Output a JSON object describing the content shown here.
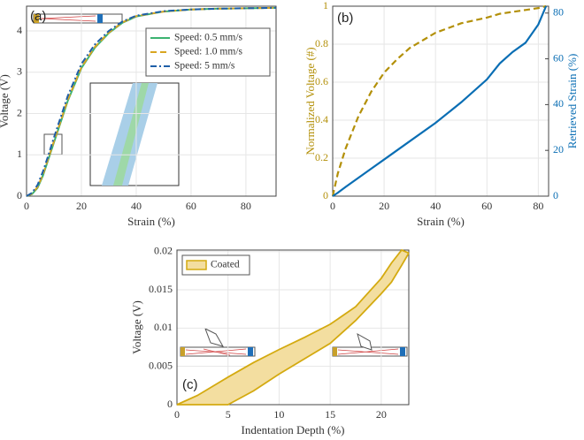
{
  "chart_data": [
    {
      "type": "line",
      "panel_label": "(a)",
      "xlabel": "Strain (%)",
      "ylabel": "Voltage (V)",
      "xlim": [
        0,
        91
      ],
      "ylim": [
        0,
        4.6
      ],
      "xticks": [
        0,
        20,
        40,
        60,
        80
      ],
      "yticks": [
        0,
        1,
        2,
        3,
        4
      ],
      "grid": true,
      "x": [
        0,
        2,
        4,
        6,
        8,
        10,
        12,
        15,
        20,
        25,
        30,
        35,
        40,
        50,
        60,
        70,
        80,
        91
      ],
      "series": [
        {
          "name": "Speed: 0.5 mm/s",
          "color": "#3cb371",
          "dash": "solid",
          "values": [
            0,
            0.05,
            0.2,
            0.5,
            0.9,
            1.3,
            1.7,
            2.3,
            3.1,
            3.6,
            3.95,
            4.2,
            4.35,
            4.47,
            4.52,
            4.54,
            4.55,
            4.56
          ]
        },
        {
          "name": "Speed: 1.0 mm/s",
          "color": "#d9a520",
          "dash": "dashed",
          "values": [
            0,
            0.06,
            0.22,
            0.53,
            0.93,
            1.33,
            1.73,
            2.33,
            3.12,
            3.62,
            3.96,
            4.21,
            4.36,
            4.47,
            4.52,
            4.54,
            4.55,
            4.56
          ]
        },
        {
          "name": "Speed: 5 mm/s",
          "color": "#1f5fa8",
          "dash": "dashdot",
          "values": [
            0,
            0.08,
            0.27,
            0.6,
            1.0,
            1.42,
            1.82,
            2.42,
            3.2,
            3.68,
            4.0,
            4.23,
            4.37,
            4.48,
            4.52,
            4.54,
            4.55,
            4.56
          ]
        }
      ]
    },
    {
      "type": "dual_line",
      "panel_label": "(b)",
      "xlabel": "Strain (%)",
      "ylabel": "Normalized Voltage (#)",
      "y2label": "Retrieved Strain (%)",
      "xlim": [
        0,
        84
      ],
      "ylim": [
        0,
        1
      ],
      "y2lim": [
        0,
        83
      ],
      "xticks": [
        0,
        20,
        40,
        60,
        80
      ],
      "yticks": [
        0,
        0.2,
        0.4,
        0.6,
        0.8,
        1
      ],
      "y2ticks": [
        0,
        20,
        40,
        60,
        80
      ],
      "grid": true,
      "x": [
        0,
        2,
        5,
        10,
        15,
        20,
        25,
        30,
        40,
        50,
        60,
        65,
        70,
        75,
        80,
        83
      ],
      "series": [
        {
          "name": "Normalized Voltage",
          "color": "#b39009",
          "dash": "dashed",
          "axis": "y",
          "values": [
            0,
            0.12,
            0.25,
            0.42,
            0.55,
            0.65,
            0.72,
            0.78,
            0.86,
            0.91,
            0.94,
            0.96,
            0.97,
            0.98,
            0.99,
            1.0
          ]
        },
        {
          "name": "Retrieved Strain",
          "color": "#0a6eb4",
          "dash": "solid",
          "axis": "y2",
          "values": [
            0,
            1.5,
            4,
            8,
            12,
            16,
            20,
            24,
            32,
            41,
            51,
            58,
            63,
            67,
            75,
            83
          ]
        }
      ]
    },
    {
      "type": "band",
      "panel_label": "(c)",
      "xlabel": "Indentation Depth (%)",
      "ylabel": "Voltage (V)",
      "xlim": [
        0,
        22.7
      ],
      "ylim": [
        0,
        0.0202
      ],
      "xticks": [
        0,
        5,
        10,
        15,
        20
      ],
      "yticks": [
        0,
        0.005,
        0.01,
        0.015,
        0.02
      ],
      "grid": true,
      "x": [
        0,
        2,
        4,
        5,
        7.5,
        10,
        12.5,
        15,
        17.5,
        20,
        21,
        22,
        22.7
      ],
      "series": [
        {
          "name": "Coated",
          "color": "#d4aa10",
          "fill": "#f3deA0",
          "values": [
            0,
            0.0012,
            0.0028,
            0.0036,
            0.0055,
            0.0072,
            0.0088,
            0.0105,
            0.0128,
            0.0165,
            0.0185,
            0.0202,
            0.0198
          ],
          "lower": [
            0,
            0,
            0,
            0,
            0.0018,
            0.004,
            0.006,
            0.008,
            0.011,
            0.0145,
            0.016,
            0.0182,
            0.0198
          ]
        }
      ]
    }
  ]
}
